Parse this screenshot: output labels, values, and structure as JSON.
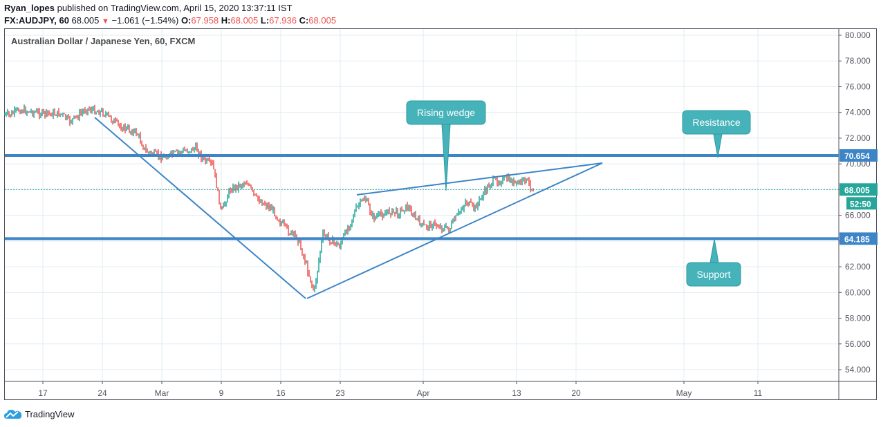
{
  "header": {
    "author": "Ryan_lopes",
    "published_text": " published on TradingView.com, April 15, 2020 13:37:11 IST",
    "symbol": "FX:AUDJPY, 60",
    "last": "68.005",
    "change_icon": "down-triangle-icon",
    "change": "−1.061 (−1.54%)",
    "o_label": "O:",
    "o": "67.958",
    "h_label": "H:",
    "h": "68.005",
    "l_label": "L:",
    "l": "67.936",
    "c_label": "C:",
    "c": "68.005"
  },
  "chart_title": "Australian Dollar / Japanese Yen, 60, FXCM",
  "footer": {
    "logo_text": "TradingView",
    "logo_icon": "tradingview-cloud-icon"
  },
  "colors": {
    "up": "#26a69a",
    "down": "#ef5350",
    "line": "#3d85c6",
    "callout": "#45b3b9",
    "grid": "#e1ecf2",
    "axis": "#50535e"
  },
  "chart_data": {
    "type": "candlestick",
    "title": "Australian Dollar / Japanese Yen, 60, FXCM",
    "symbol": "FX:AUDJPY",
    "interval": "60",
    "xlabel": "",
    "ylabel": "",
    "ylim": [
      53,
      80.5
    ],
    "y_ticks": [
      "80.000",
      "78.000",
      "76.000",
      "74.000",
      "72.000",
      "70.000",
      "68.000",
      "66.000",
      "64.000",
      "62.000",
      "60.000",
      "58.000",
      "56.000",
      "54.000"
    ],
    "x_ticks": [
      "17",
      "24",
      "Mar",
      "9",
      "16",
      "23",
      "Apr",
      "13",
      "20",
      "May",
      "11"
    ],
    "grid": true,
    "price_path": [
      {
        "date": "Feb 13",
        "price": 73.8
      },
      {
        "date": "Feb 14",
        "price": 74.2
      },
      {
        "date": "Feb 17",
        "price": 73.9
      },
      {
        "date": "Feb 19",
        "price": 73.9
      },
      {
        "date": "Feb 20",
        "price": 73.3
      },
      {
        "date": "Feb 21",
        "price": 73.7
      },
      {
        "date": "Feb 22",
        "price": 74.3
      },
      {
        "date": "Feb 24",
        "price": 74.0
      },
      {
        "date": "Feb 26",
        "price": 72.9
      },
      {
        "date": "Feb 28",
        "price": 72.4
      },
      {
        "date": "Feb 29",
        "price": 71.0
      },
      {
        "date": "Mar 2",
        "price": 70.5
      },
      {
        "date": "Mar 4",
        "price": 70.9
      },
      {
        "date": "Mar 6",
        "price": 71.2
      },
      {
        "date": "Mar 7",
        "price": 70.2
      },
      {
        "date": "Mar 8",
        "price": 69.9
      },
      {
        "date": "Mar 9",
        "price": 66.2
      },
      {
        "date": "Mar 10",
        "price": 68.0
      },
      {
        "date": "Mar 12",
        "price": 68.6
      },
      {
        "date": "Mar 13",
        "price": 67.4
      },
      {
        "date": "Mar 15",
        "price": 66.5
      },
      {
        "date": "Mar 16",
        "price": 65.5
      },
      {
        "date": "Mar 17",
        "price": 64.7
      },
      {
        "date": "Mar 18",
        "price": 64.3
      },
      {
        "date": "Mar 19",
        "price": 62.3
      },
      {
        "date": "Mar 20",
        "price": 60.0
      },
      {
        "date": "Mar 21",
        "price": 64.5
      },
      {
        "date": "Mar 23",
        "price": 63.6
      },
      {
        "date": "Mar 25",
        "price": 66.5
      },
      {
        "date": "Mar 26",
        "price": 67.4
      },
      {
        "date": "Mar 27",
        "price": 65.8
      },
      {
        "date": "Mar 29",
        "price": 66.3
      },
      {
        "date": "Mar 30",
        "price": 66.2
      },
      {
        "date": "Mar 31",
        "price": 66.7
      },
      {
        "date": "Apr 1",
        "price": 65.8
      },
      {
        "date": "Apr 2",
        "price": 65.1
      },
      {
        "date": "Apr 3",
        "price": 65.3
      },
      {
        "date": "Apr 5",
        "price": 64.9
      },
      {
        "date": "Apr 6",
        "price": 66.0
      },
      {
        "date": "Apr 7",
        "price": 67.1
      },
      {
        "date": "Apr 8",
        "price": 66.5
      },
      {
        "date": "Apr 9",
        "price": 67.6
      },
      {
        "date": "Apr 10",
        "price": 68.6
      },
      {
        "date": "Apr 12",
        "price": 68.8
      },
      {
        "date": "Apr 13",
        "price": 68.4
      },
      {
        "date": "Apr 14",
        "price": 68.8
      },
      {
        "date": "Apr 15",
        "price": 68.005
      }
    ],
    "horizontal_lines": [
      {
        "name": "Resistance",
        "price": 70.654
      },
      {
        "name": "Support",
        "price": 64.185
      }
    ],
    "last_price_label": "68.005",
    "countdown_label": "52:50",
    "trend_lines": [
      {
        "name": "descending trendline",
        "from": {
          "date": "Feb 23",
          "price": 73.8
        },
        "to": {
          "date": "Mar 19",
          "price": 59.5
        }
      },
      {
        "name": "wedge lower",
        "from": {
          "date": "Mar 19",
          "price": 59.5
        },
        "to": {
          "date": "Apr 22",
          "price": 70.0
        }
      },
      {
        "name": "wedge upper",
        "from": {
          "date": "Mar 24",
          "price": 67.6
        },
        "to": {
          "date": "Apr 22",
          "price": 70.0
        }
      }
    ],
    "annotations": [
      {
        "text": "Rising wedge",
        "points_to_price": 68.0
      },
      {
        "text": "Resistance",
        "points_to_price": 70.654
      },
      {
        "text": "Support",
        "points_to_price": 64.185
      }
    ]
  }
}
